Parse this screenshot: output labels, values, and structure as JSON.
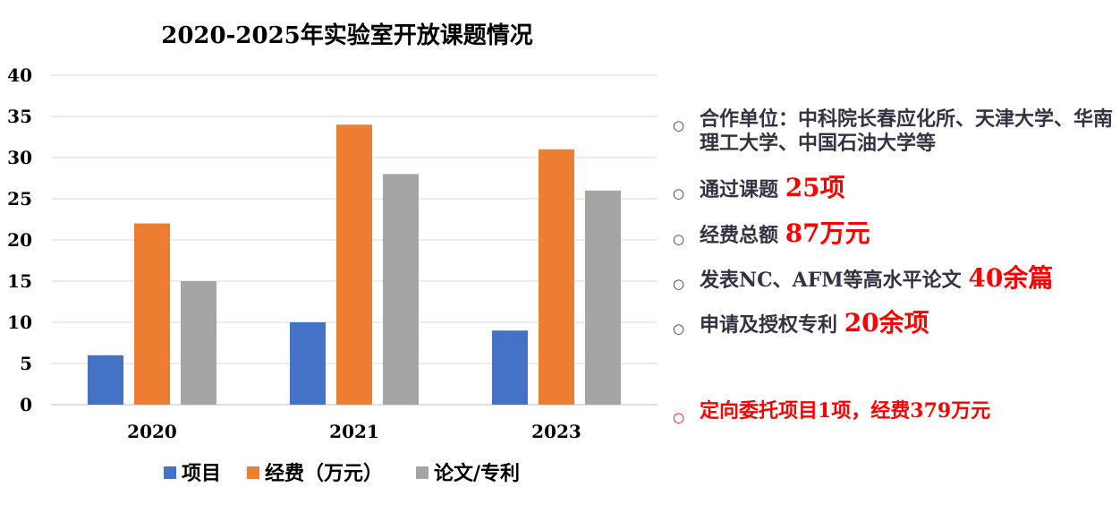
{
  "chart_data": {
    "type": "bar",
    "title": "2020-2025年实验室开放课题情况",
    "categories": [
      "2020",
      "2021",
      "2023"
    ],
    "series": [
      {
        "name": "项目",
        "values": [
          6,
          10,
          9
        ],
        "color": "#4472c4"
      },
      {
        "name": "经费（万元）",
        "values": [
          22,
          34,
          31
        ],
        "color": "#ed7d31"
      },
      {
        "name": "论文/专利",
        "values": [
          15,
          28,
          26
        ],
        "color": "#a5a5a5"
      }
    ],
    "ylim": [
      0,
      40
    ],
    "yticks": [
      0,
      5,
      10,
      15,
      20,
      25,
      30,
      35,
      40
    ],
    "grid": true,
    "legend": "bottom"
  },
  "bullets": [
    {
      "text": "合作单位：中科院长春应化所、天津大学、华南理工大学、中国石油大学等",
      "highlight": ""
    },
    {
      "text": "通过课题",
      "highlight": "25项"
    },
    {
      "text": "经费总额",
      "highlight": "87万元"
    },
    {
      "text": "发表NC、AFM等高水平论文",
      "highlight": "40余篇"
    },
    {
      "text": "申请及授权专利",
      "highlight": "20余项"
    },
    {
      "text": "定向委托项目1项，经费379万元",
      "highlight": ""
    }
  ],
  "bullet_mark": "○"
}
